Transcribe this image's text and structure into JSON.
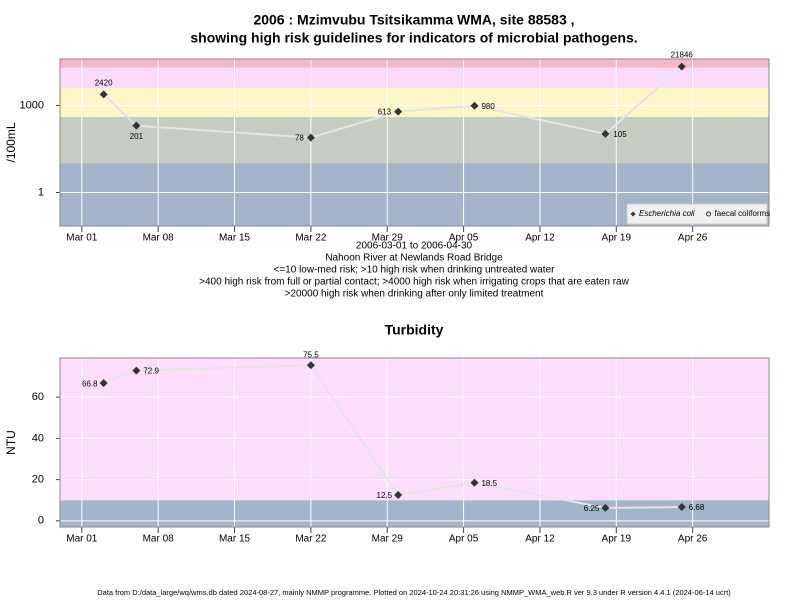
{
  "chart_data": [
    {
      "type": "line",
      "title": [
        "2006 : Mzimvubu Tsitsikamma WMA, site 88583 ,",
        "showing high risk guidelines for indicators of microbial pathogens."
      ],
      "y_label": "/100mL",
      "x": [
        "2006-03-03",
        "2006-03-06",
        "2006-03-22",
        "2006-03-30",
        "2006-04-06",
        "2006-04-18",
        "2006-04-25"
      ],
      "series": [
        {
          "name": "Escherichia coli",
          "color": "#333333",
          "marker": "diamond",
          "values": [
            2420,
            201,
            78,
            613,
            980,
            105,
            21846
          ]
        },
        {
          "name": "faecal coliforms",
          "color": "#333333",
          "marker": "circle",
          "values": [
            null,
            null,
            null,
            null,
            null,
            null,
            null
          ]
        }
      ],
      "line_color": "#e4e4e4",
      "log_scale": true,
      "ylim": [
        0.07,
        40000
      ],
      "yticks": [
        1,
        1000
      ],
      "xlim": [
        "2006-02-27",
        "2006-05-03"
      ],
      "xticks": [
        {
          "value": "2006-03-01",
          "label": "Mar 01"
        },
        {
          "value": "2006-03-08",
          "label": "Mar 08"
        },
        {
          "value": "2006-03-15",
          "label": "Mar 15"
        },
        {
          "value": "2006-03-22",
          "label": "Mar 22"
        },
        {
          "value": "2006-03-29",
          "label": "Mar 29"
        },
        {
          "value": "2006-04-05",
          "label": "Apr 05"
        },
        {
          "value": "2006-04-12",
          "label": "Apr 12"
        },
        {
          "value": "2006-04-19",
          "label": "Apr 19"
        },
        {
          "value": "2006-04-26",
          "label": "Apr 26"
        }
      ],
      "band_breaks": [
        10,
        400,
        4000,
        20000
      ],
      "band_colors": [
        "#a3b4cb",
        "#c4cdbf",
        "#fdf6c9",
        "#fcdafc",
        "#f9b6c6"
      ],
      "grid": true,
      "legend": "bottom-right",
      "notes": [
        "2006-03-01 to 2006-04-30",
        "Nahoon River at Newlands Road Bridge",
        "<=10 low-med risk; >10 high risk when drinking untreated water",
        ">400 high risk from full or partial contact; >4000 high risk when irrigating crops that are eaten raw",
        ">20000 high risk when drinking after only limited treatment"
      ]
    },
    {
      "type": "line",
      "title": "Turbidity",
      "y_label": "NTU",
      "x": [
        "2006-03-03",
        "2006-03-06",
        "2006-03-22",
        "2006-03-30",
        "2006-04-06",
        "2006-04-18",
        "2006-04-25"
      ],
      "values": [
        66.8,
        72.9,
        75.5,
        12.5,
        18.5,
        6.25,
        6.68
      ],
      "color": "#333333",
      "marker": "diamond",
      "line_color": "#e4e4e4",
      "log_scale": false,
      "ylim": [
        -3,
        79
      ],
      "yticks": [
        0,
        20,
        40,
        60
      ],
      "xlim": [
        "2006-02-27",
        "2006-05-03"
      ],
      "xticks": [
        {
          "value": "2006-03-01",
          "label": "Mar 01"
        },
        {
          "value": "2006-03-08",
          "label": "Mar 08"
        },
        {
          "value": "2006-03-15",
          "label": "Mar 15"
        },
        {
          "value": "2006-03-22",
          "label": "Mar 22"
        },
        {
          "value": "2006-03-29",
          "label": "Mar 29"
        },
        {
          "value": "2006-04-05",
          "label": "Apr 05"
        },
        {
          "value": "2006-04-12",
          "label": "Apr 12"
        },
        {
          "value": "2006-04-19",
          "label": "Apr 19"
        },
        {
          "value": "2006-04-26",
          "label": "Apr 26"
        }
      ],
      "band_breaks": [
        10
      ],
      "band_colors": [
        "#a3b4cb",
        "#fcdefc"
      ],
      "grid": true
    }
  ],
  "footer": "Data from D:/data_large/wq/wms.db dated 2024-08-27, mainly NMMP programme. Plotted on 2024-10-24 20:31:26 using NMMP_WMA_web.R ver 9.3 under R version 4.4.1 (2024-06-14 ucrt)"
}
